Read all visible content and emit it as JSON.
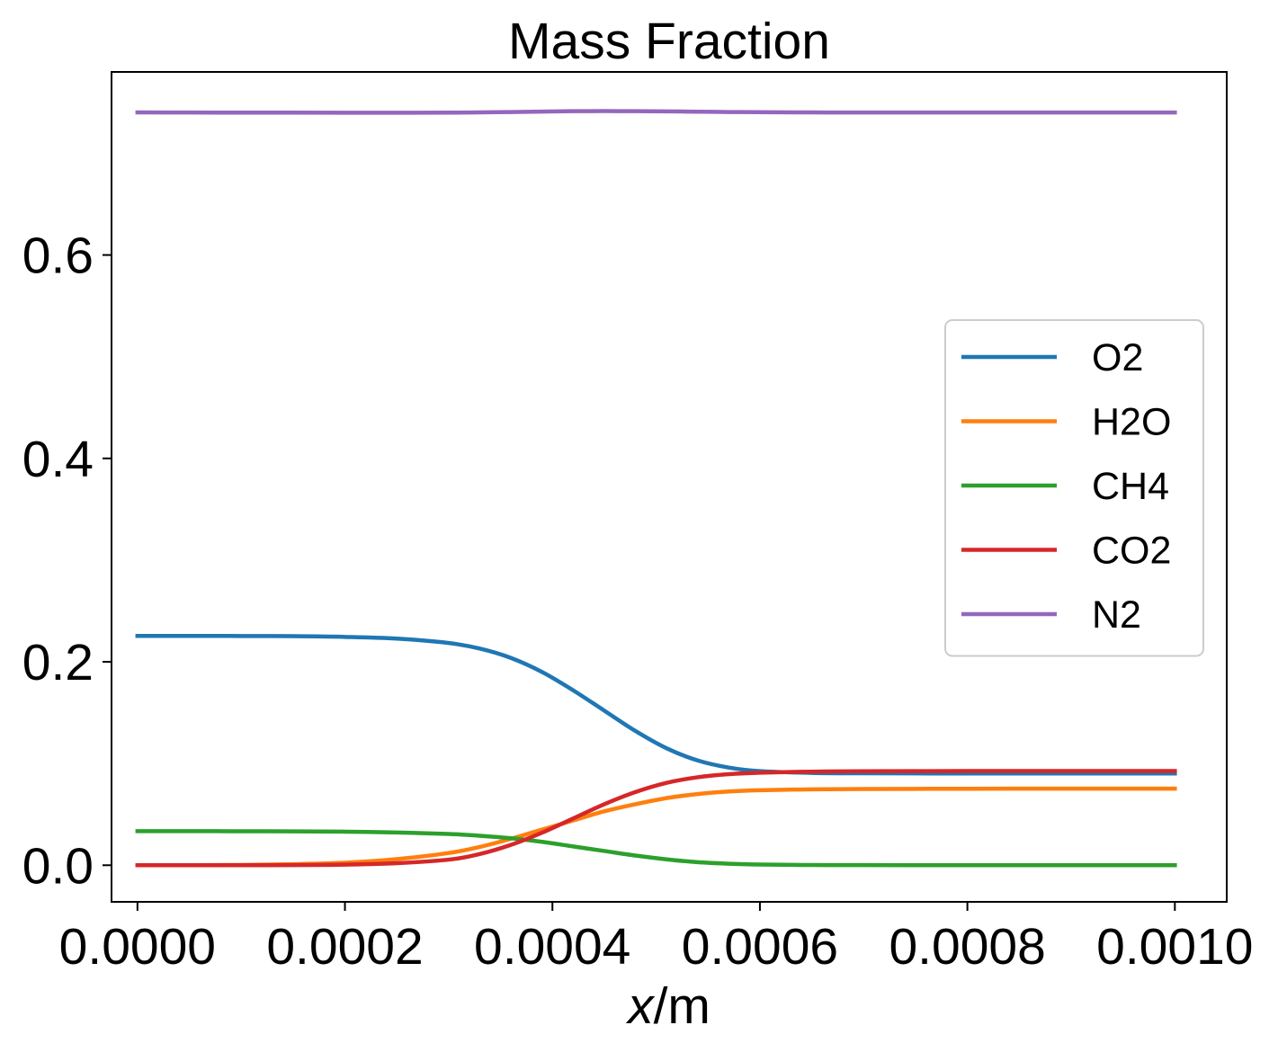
{
  "chart_data": {
    "type": "line",
    "title": "Mass Fraction",
    "xlabel_var": "x",
    "xlabel_unit": "/m",
    "ylabel": "",
    "xlim": [
      -2.5e-05,
      0.00105
    ],
    "ylim": [
      -0.036,
      0.78
    ],
    "xticks": [
      0.0,
      0.0002,
      0.0004,
      0.0006,
      0.0008,
      0.001
    ],
    "xtick_labels": [
      "0.0000",
      "0.0002",
      "0.0004",
      "0.0006",
      "0.0008",
      "0.0010"
    ],
    "yticks": [
      0.0,
      0.2,
      0.4,
      0.6
    ],
    "ytick_labels": [
      "0.0",
      "0.2",
      "0.4",
      "0.6"
    ],
    "grid": false,
    "legend_position": "center-right",
    "x": [
      0.0,
      5e-05,
      0.0001,
      0.00015,
      0.0002,
      0.00025,
      0.0003,
      0.00033,
      0.00036,
      0.00039,
      0.00042,
      0.00045,
      0.00048,
      0.00051,
      0.00054,
      0.00057,
      0.0006,
      0.00065,
      0.0007,
      0.0008,
      0.0009,
      0.001
    ],
    "series": [
      {
        "name": "O2",
        "color": "#1f77b4",
        "values": [
          0.2255,
          0.2255,
          0.2254,
          0.2252,
          0.2245,
          0.2228,
          0.2185,
          0.213,
          0.2038,
          0.19,
          0.172,
          0.152,
          0.132,
          0.115,
          0.103,
          0.096,
          0.0925,
          0.0908,
          0.0904,
          0.0902,
          0.0902,
          0.0902
        ]
      },
      {
        "name": "H2O",
        "color": "#ff7f0e",
        "values": [
          0.0,
          0.0,
          0.0003,
          0.001,
          0.0025,
          0.006,
          0.012,
          0.018,
          0.026,
          0.035,
          0.044,
          0.053,
          0.06,
          0.066,
          0.07,
          0.0725,
          0.0737,
          0.0746,
          0.075,
          0.0752,
          0.0753,
          0.0753
        ]
      },
      {
        "name": "CH4",
        "color": "#2ca02c",
        "values": [
          0.0335,
          0.0335,
          0.0334,
          0.0333,
          0.033,
          0.0322,
          0.0308,
          0.029,
          0.0265,
          0.023,
          0.0185,
          0.014,
          0.0095,
          0.0058,
          0.003,
          0.0015,
          0.0007,
          0.0002,
          0.0001,
          0.0,
          0.0,
          0.0
        ]
      },
      {
        "name": "CO2",
        "color": "#d62728",
        "values": [
          0.0,
          0.0,
          0.0,
          0.0001,
          0.0006,
          0.002,
          0.0055,
          0.011,
          0.02,
          0.032,
          0.046,
          0.06,
          0.072,
          0.081,
          0.0865,
          0.0895,
          0.091,
          0.092,
          0.0924,
          0.0926,
          0.0926,
          0.0926
        ]
      },
      {
        "name": "N2",
        "color": "#9467bd",
        "values": [
          0.7402,
          0.7401,
          0.74,
          0.74,
          0.7399,
          0.7399,
          0.74,
          0.7402,
          0.7406,
          0.741,
          0.7414,
          0.7415,
          0.7414,
          0.7412,
          0.7409,
          0.7406,
          0.7404,
          0.7402,
          0.7401,
          0.7401,
          0.7401,
          0.7401
        ]
      }
    ]
  }
}
